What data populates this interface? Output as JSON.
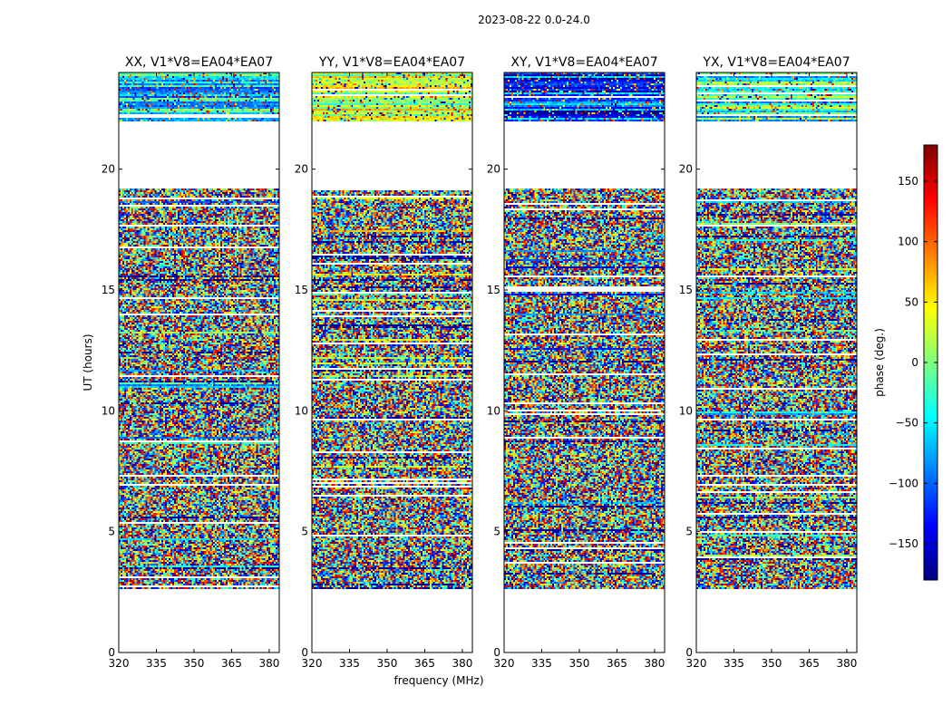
{
  "figure": {
    "suptitle": "2023-08-22 0.0-24.0",
    "ylabel": "UT (hours)",
    "xlabel": "frequency (MHz)"
  },
  "colorbar": {
    "label": "phase (deg.)",
    "ticks": [
      150,
      100,
      50,
      0,
      -50,
      -100,
      -150
    ],
    "tick_labels": [
      "150",
      "100",
      "50",
      "0",
      "−50",
      "−100",
      "−150"
    ],
    "range": [
      -180,
      180
    ],
    "colormap": "jet",
    "stops": [
      "#00007f",
      "#0000ff",
      "#007fff",
      "#00ffff",
      "#7fff7f",
      "#ffff00",
      "#ff7f00",
      "#ff0000",
      "#7f0000"
    ]
  },
  "chart_data": [
    {
      "type": "heatmap",
      "title": "XX, V1*V8=EA04*EA07",
      "xlabel": "",
      "ylabel": "UT (hours)",
      "xlim": [
        320,
        384
      ],
      "ylim": [
        0,
        24
      ],
      "xticks": [
        320,
        335,
        350,
        365,
        380
      ],
      "yticks": [
        0,
        5,
        10,
        15,
        20
      ],
      "value_range": [
        -180,
        180
      ],
      "data_rows_ut": [
        2.6,
        24.0
      ],
      "data_gap_ut": [
        19.2,
        22.0
      ]
    },
    {
      "type": "heatmap",
      "title": "YY, V1*V8=EA04*EA07",
      "xlabel": "frequency (MHz)",
      "ylabel": "",
      "xlim": [
        320,
        384
      ],
      "ylim": [
        0,
        24
      ],
      "xticks": [
        320,
        335,
        350,
        365,
        380
      ],
      "yticks": [
        0,
        5,
        10,
        15,
        20
      ],
      "value_range": [
        -180,
        180
      ],
      "data_rows_ut": [
        2.6,
        24.0
      ],
      "data_gap_ut": [
        19.2,
        22.0
      ]
    },
    {
      "type": "heatmap",
      "title": "XY, V1*V8=EA04*EA07",
      "xlabel": "",
      "ylabel": "",
      "xlim": [
        320,
        384
      ],
      "ylim": [
        0,
        24
      ],
      "xticks": [
        320,
        335,
        350,
        365,
        380
      ],
      "yticks": [
        0,
        5,
        10,
        15,
        20
      ],
      "value_range": [
        -180,
        180
      ],
      "data_rows_ut": [
        2.6,
        24.0
      ],
      "data_gap_ut": [
        19.2,
        22.0
      ]
    },
    {
      "type": "heatmap",
      "title": "YX, V1*V8=EA04*EA07",
      "xlabel": "",
      "ylabel": "",
      "xlim": [
        320,
        384
      ],
      "ylim": [
        0,
        24
      ],
      "xticks": [
        320,
        335,
        350,
        365,
        380
      ],
      "yticks": [
        0,
        5,
        10,
        15,
        20
      ],
      "value_range": [
        -180,
        180
      ],
      "data_rows_ut": [
        2.6,
        24.0
      ],
      "data_gap_ut": [
        19.2,
        22.0
      ]
    }
  ]
}
